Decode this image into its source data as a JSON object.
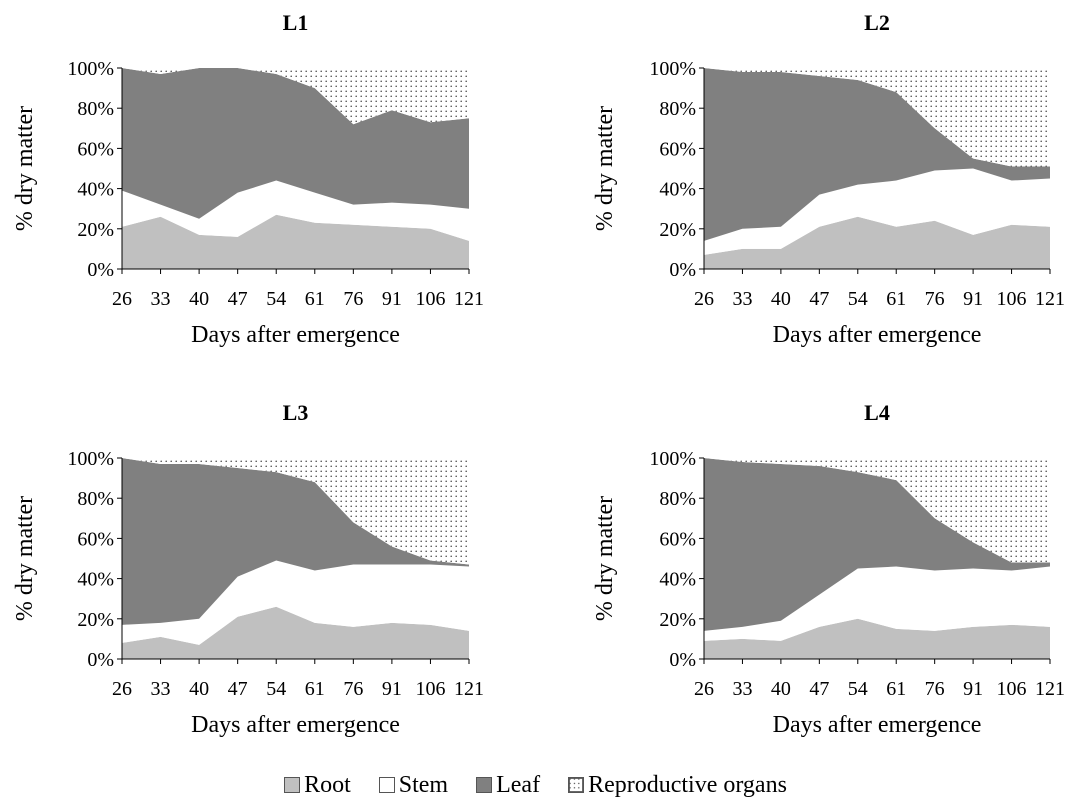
{
  "chart_data": [
    {
      "type": "area",
      "title": "L1",
      "xlabel": "Days after emergence",
      "ylabel": "% dry matter",
      "categories": [
        "26",
        "33",
        "40",
        "47",
        "54",
        "61",
        "76",
        "91",
        "106",
        "121"
      ],
      "yticks": [
        "0%",
        "20%",
        "40%",
        "60%",
        "80%",
        "100%"
      ],
      "ylim": [
        0,
        100
      ],
      "stacked": true,
      "series": [
        {
          "name": "Root",
          "values": [
            21,
            26,
            17,
            16,
            27,
            23,
            22,
            21,
            20,
            14
          ]
        },
        {
          "name": "Stem",
          "values": [
            18,
            6,
            8,
            22,
            17,
            15,
            10,
            12,
            12,
            16
          ]
        },
        {
          "name": "Leaf",
          "values": [
            61,
            65,
            75,
            62,
            53,
            52,
            40,
            46,
            41,
            45
          ]
        },
        {
          "name": "Reproductive organs",
          "values": [
            0,
            3,
            0,
            0,
            3,
            10,
            28,
            21,
            27,
            25
          ]
        }
      ]
    },
    {
      "type": "area",
      "title": "L2",
      "xlabel": "Days after emergence",
      "ylabel": "% dry matter",
      "categories": [
        "26",
        "33",
        "40",
        "47",
        "54",
        "61",
        "76",
        "91",
        "106",
        "121"
      ],
      "yticks": [
        "0%",
        "20%",
        "40%",
        "60%",
        "80%",
        "100%"
      ],
      "ylim": [
        0,
        100
      ],
      "stacked": true,
      "series": [
        {
          "name": "Root",
          "values": [
            7,
            10,
            10,
            21,
            26,
            21,
            24,
            17,
            22,
            21
          ]
        },
        {
          "name": "Stem",
          "values": [
            7,
            10,
            11,
            16,
            16,
            23,
            25,
            33,
            22,
            24
          ]
        },
        {
          "name": "Leaf",
          "values": [
            86,
            78,
            77,
            59,
            52,
            44,
            21,
            5,
            7,
            6
          ]
        },
        {
          "name": "Reproductive organs",
          "values": [
            0,
            2,
            2,
            4,
            6,
            12,
            30,
            45,
            49,
            49
          ]
        }
      ]
    },
    {
      "type": "area",
      "title": "L3",
      "xlabel": "Days after emergence",
      "ylabel": "% dry matter",
      "categories": [
        "26",
        "33",
        "40",
        "47",
        "54",
        "61",
        "76",
        "91",
        "106",
        "121"
      ],
      "yticks": [
        "0%",
        "20%",
        "40%",
        "60%",
        "80%",
        "100%"
      ],
      "ylim": [
        0,
        100
      ],
      "stacked": true,
      "series": [
        {
          "name": "Root",
          "values": [
            8,
            11,
            7,
            21,
            26,
            18,
            16,
            18,
            17,
            14
          ]
        },
        {
          "name": "Stem",
          "values": [
            9,
            7,
            13,
            20,
            23,
            26,
            31,
            29,
            30,
            32
          ]
        },
        {
          "name": "Leaf",
          "values": [
            83,
            79,
            77,
            54,
            44,
            44,
            21,
            9,
            2,
            1
          ]
        },
        {
          "name": "Reproductive organs",
          "values": [
            0,
            3,
            3,
            5,
            7,
            12,
            32,
            44,
            51,
            53
          ]
        }
      ]
    },
    {
      "type": "area",
      "title": "L4",
      "xlabel": "Days after emergence",
      "ylabel": "% dry matter",
      "categories": [
        "26",
        "33",
        "40",
        "47",
        "54",
        "61",
        "76",
        "91",
        "106",
        "121"
      ],
      "yticks": [
        "0%",
        "20%",
        "40%",
        "60%",
        "80%",
        "100%"
      ],
      "ylim": [
        0,
        100
      ],
      "stacked": true,
      "series": [
        {
          "name": "Root",
          "values": [
            9,
            10,
            9,
            16,
            20,
            15,
            14,
            16,
            17,
            16
          ]
        },
        {
          "name": "Stem",
          "values": [
            5,
            6,
            10,
            16,
            25,
            31,
            30,
            29,
            27,
            30
          ]
        },
        {
          "name": "Leaf",
          "values": [
            86,
            82,
            78,
            64,
            48,
            43,
            26,
            13,
            4,
            2
          ]
        },
        {
          "name": "Reproductive organs",
          "values": [
            0,
            2,
            3,
            4,
            7,
            11,
            30,
            42,
            52,
            52
          ]
        }
      ]
    }
  ],
  "legend": [
    {
      "label": "Root",
      "color": "#c0c0c0",
      "pattern": "solid"
    },
    {
      "label": "Stem",
      "color": "#ffffff",
      "pattern": "solid"
    },
    {
      "label": "Leaf",
      "color": "#808080",
      "pattern": "solid"
    },
    {
      "label": "Reproductive organs",
      "color": "#ffffff",
      "pattern": "dots"
    }
  ],
  "colors": {
    "root": "#c0c0c0",
    "stem": "#ffffff",
    "leaf": "#808080",
    "reproductive": "#ffffff",
    "axis": "#000000"
  }
}
